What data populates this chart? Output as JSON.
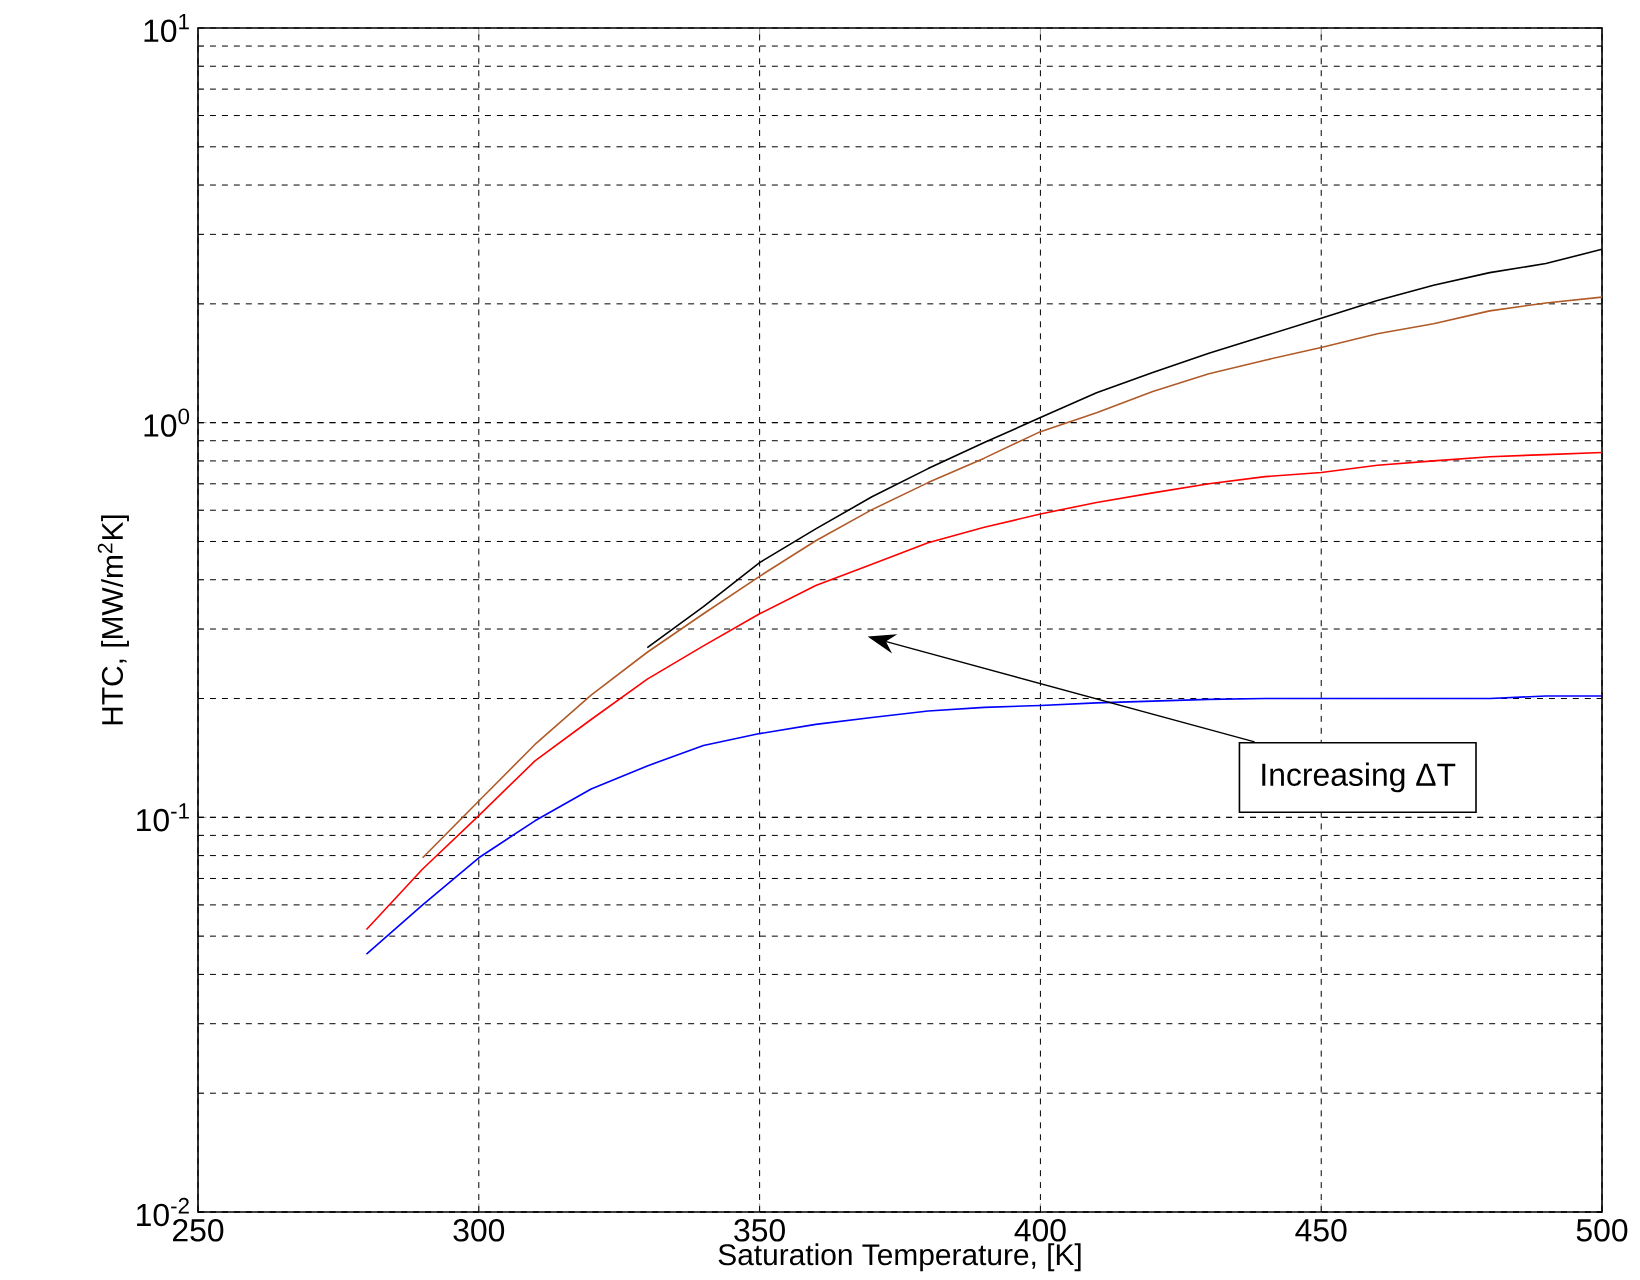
{
  "chart_data": {
    "type": "line",
    "xlabel": "Saturation Temperature, [K]",
    "ylabel": "HTC, [MW/m$^{2}$K]",
    "log": "y",
    "grid": true,
    "xlim": [
      250,
      500
    ],
    "xticks": [
      250,
      300,
      350,
      400,
      450,
      500
    ],
    "ylim": [
      0.01,
      10
    ],
    "yticks": [
      {
        "value": 0.01,
        "label": "10$^{-2}$"
      },
      {
        "value": 0.1,
        "label": "10$^{-1}$"
      },
      {
        "value": 1,
        "label": "10$^{0}$"
      },
      {
        "value": 10,
        "label": "10$^{1}$"
      }
    ],
    "annotations": [
      "Increasing ΔT"
    ],
    "series": [
      {
        "color": "#0000ff",
        "x": [
          280,
          290,
          300,
          310,
          320,
          330,
          340,
          350,
          360,
          370,
          380,
          390,
          400,
          410,
          420,
          430,
          440,
          450,
          460,
          470,
          480,
          490,
          500
        ],
        "values": [
          0.045,
          0.06,
          0.079,
          0.098,
          0.118,
          0.135,
          0.152,
          0.163,
          0.172,
          0.179,
          0.186,
          0.19,
          0.192,
          0.195,
          0.197,
          0.199,
          0.2,
          0.2,
          0.2,
          0.2,
          0.2,
          0.203,
          0.203
        ]
      },
      {
        "color": "#ff0000",
        "x": [
          280,
          290,
          300,
          310,
          320,
          330,
          340,
          350,
          360,
          370,
          380,
          390,
          400,
          410,
          420,
          430,
          440,
          450,
          460,
          470,
          480,
          490,
          500
        ],
        "values": [
          0.052,
          0.074,
          0.101,
          0.139,
          0.177,
          0.224,
          0.272,
          0.328,
          0.387,
          0.438,
          0.496,
          0.543,
          0.587,
          0.628,
          0.664,
          0.7,
          0.73,
          0.748,
          0.78,
          0.8,
          0.82,
          0.83,
          0.84
        ]
      },
      {
        "color": "#b05a28",
        "x": [
          290,
          300,
          310,
          320,
          330,
          340,
          350,
          360,
          370,
          380,
          390,
          400,
          410,
          420,
          430,
          440,
          450,
          460,
          470,
          480,
          490,
          500
        ],
        "values": [
          0.079,
          0.11,
          0.153,
          0.204,
          0.262,
          0.328,
          0.408,
          0.502,
          0.602,
          0.705,
          0.813,
          0.949,
          1.06,
          1.2,
          1.33,
          1.44,
          1.55,
          1.68,
          1.78,
          1.92,
          2.01,
          2.08
        ]
      },
      {
        "color": "#000000",
        "x": [
          330,
          340,
          350,
          360,
          370,
          380,
          390,
          400,
          410,
          420,
          430,
          440,
          450,
          460,
          470,
          480,
          490,
          500
        ],
        "values": [
          0.269,
          0.342,
          0.442,
          0.538,
          0.649,
          0.765,
          0.891,
          1.03,
          1.19,
          1.34,
          1.5,
          1.66,
          1.84,
          2.04,
          2.23,
          2.4,
          2.53,
          2.75
        ]
      }
    ]
  }
}
